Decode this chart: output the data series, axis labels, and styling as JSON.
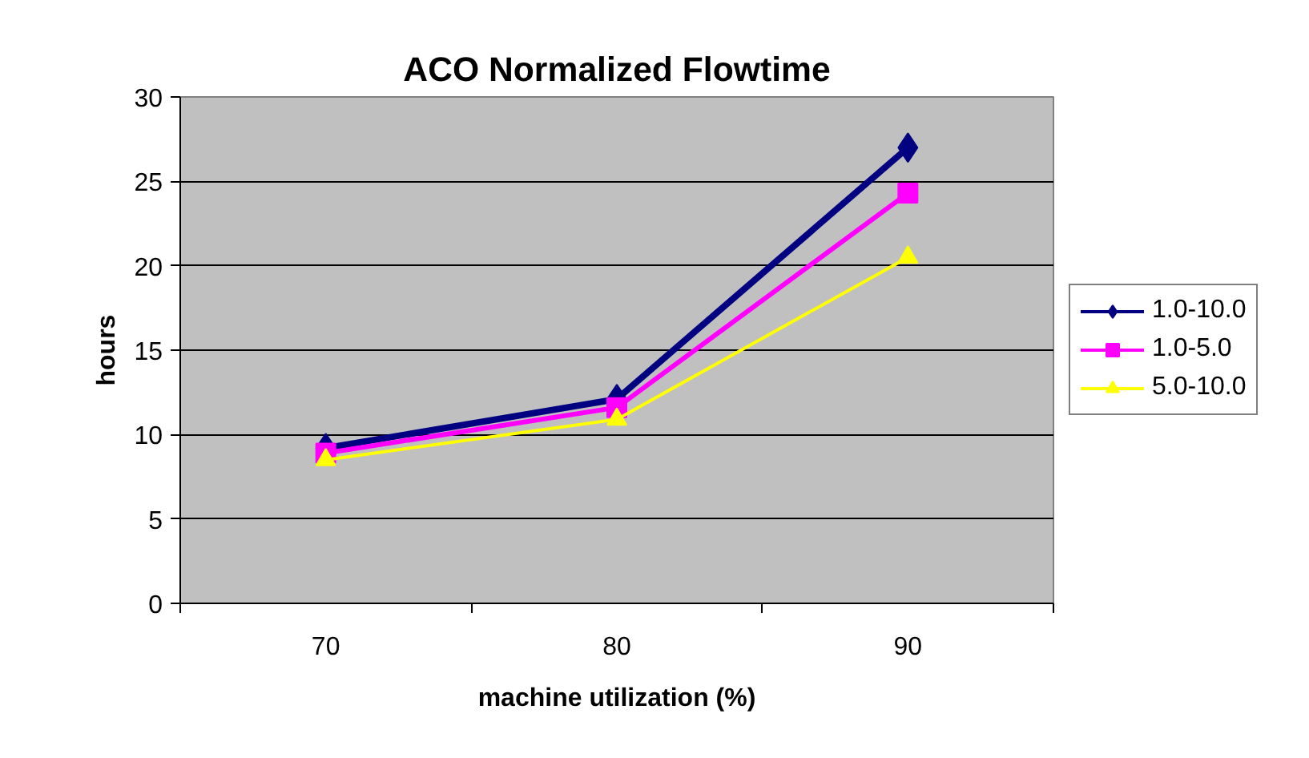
{
  "chart_data": {
    "type": "line",
    "title": "ACO Normalized Flowtime",
    "xlabel": "machine utilization (%)",
    "ylabel": "hours",
    "categories": [
      "70",
      "80",
      "90"
    ],
    "series": [
      {
        "name": "1.0-10.0",
        "color": "#000080",
        "marker": "diamond",
        "values": [
          9.2,
          12.1,
          27.0
        ]
      },
      {
        "name": "1.0-5.0",
        "color": "#ff00ff",
        "marker": "square",
        "values": [
          8.9,
          11.6,
          24.3
        ]
      },
      {
        "name": "5.0-10.0",
        "color": "#ffff00",
        "marker": "triangle",
        "values": [
          8.5,
          10.9,
          20.5
        ]
      }
    ],
    "ylim": [
      0,
      30
    ],
    "yticks": [
      0,
      5,
      10,
      15,
      20,
      25,
      30
    ],
    "grid": "y",
    "legend": "right",
    "line_style": "solid"
  }
}
